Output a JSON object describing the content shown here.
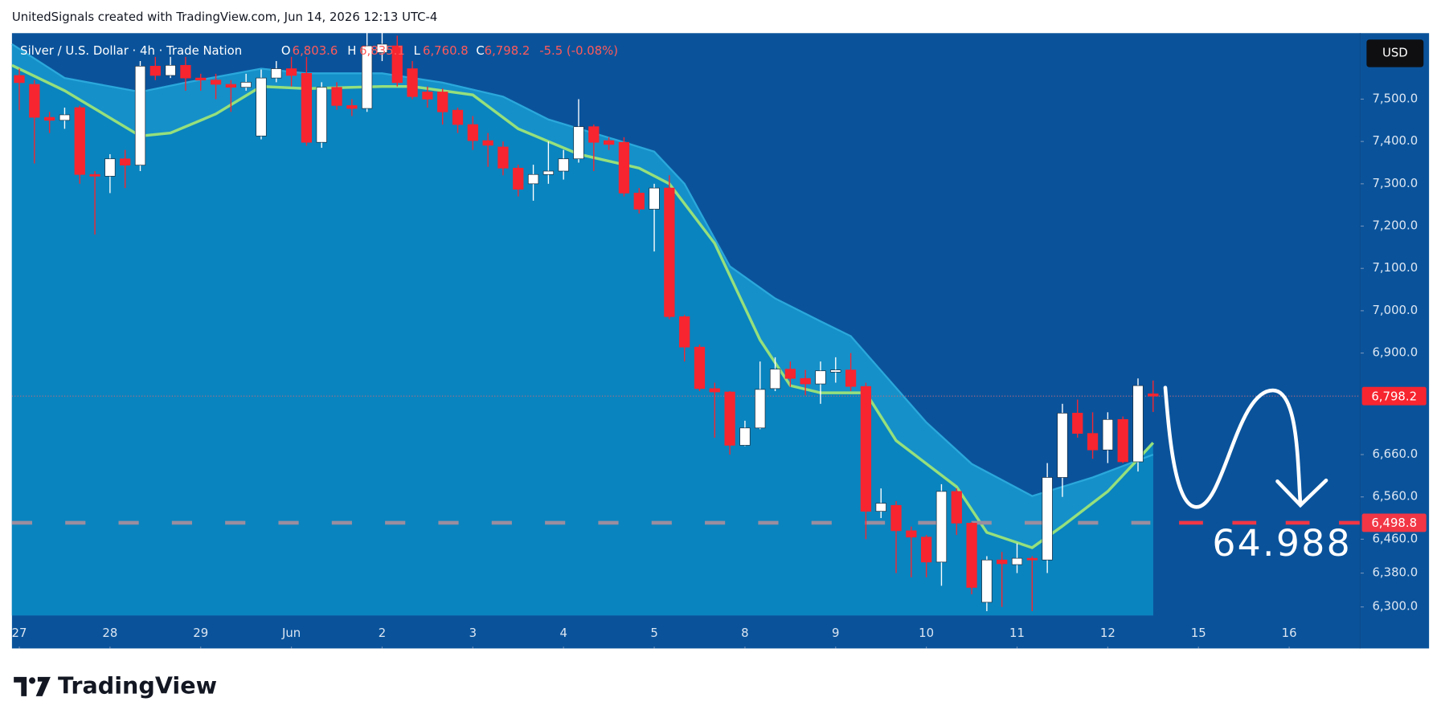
{
  "header": {
    "attribution": "UnitedSignals created with TradingView.com, Jun 14, 2026 12:13 UTC-4"
  },
  "currency_button": "USD",
  "logo": "TradingView",
  "chart_data": {
    "type": "candlestick",
    "legend": {
      "symbol": "Silver / U.S. Dollar · 4h · Trade Nation",
      "o_label": "O",
      "o": "6,803.6",
      "h_label": "H",
      "h": "6,835.1",
      "l_label": "L",
      "l": "6,760.8",
      "c_label": "C",
      "c": "6,798.2",
      "change": "-5.5 (-0.08%)"
    },
    "open": [
      7556,
      7535,
      7457,
      7450,
      7480,
      7322,
      7318,
      7359,
      7344,
      7578,
      7556,
      7580,
      7550,
      7545,
      7535,
      7528,
      7413,
      7550,
      7572,
      7561,
      7398,
      7528,
      7485,
      7478,
      7610,
      7626,
      7572,
      7517,
      7517,
      7474,
      7440,
      7402,
      7387,
      7337,
      7300,
      7322,
      7330,
      7359,
      7435,
      7402,
      7398,
      7278,
      7240,
      7290,
      6986,
      6914,
      6816,
      6808,
      6682,
      6723,
      6816,
      6862,
      6840,
      6827,
      6855,
      6860,
      6821,
      6526,
      6540,
      6480,
      6465,
      6406,
      6573,
      6498,
      6311,
      6411,
      6400,
      6415,
      6411,
      6606,
      6758,
      6710,
      6671,
      6743,
      6643,
      6803.6
    ],
    "high": [
      7572,
      7545,
      7470,
      7480,
      7485,
      7330,
      7370,
      7380,
      7590,
      7600,
      7600,
      7600,
      7560,
      7560,
      7545,
      7560,
      7570,
      7590,
      7600,
      7600,
      7540,
      7540,
      7500,
      7660,
      7660,
      7650,
      7590,
      7530,
      7525,
      7480,
      7460,
      7420,
      7400,
      7345,
      7345,
      7400,
      7380,
      7500,
      7440,
      7410,
      7410,
      7290,
      7300,
      7320,
      6990,
      6920,
      6830,
      6810,
      6740,
      6880,
      6890,
      6880,
      6860,
      6880,
      6890,
      6900,
      6830,
      6580,
      6550,
      6490,
      6470,
      6590,
      6580,
      6500,
      6420,
      6430,
      6450,
      6420,
      6640,
      6780,
      6790,
      6760,
      6760,
      6750,
      6840,
      6835.1
    ],
    "low": [
      7474,
      7348,
      7420,
      7430,
      7300,
      7180,
      7278,
      7290,
      7330,
      7545,
      7550,
      7520,
      7520,
      7500,
      7470,
      7520,
      7405,
      7540,
      7530,
      7390,
      7385,
      7475,
      7460,
      7470,
      7590,
      7530,
      7500,
      7480,
      7440,
      7420,
      7380,
      7340,
      7320,
      7270,
      7260,
      7300,
      7310,
      7350,
      7330,
      7380,
      7270,
      7230,
      7140,
      6980,
      6880,
      6810,
      6700,
      6660,
      6680,
      6720,
      6810,
      6820,
      6800,
      6780,
      6830,
      6810,
      6460,
      6510,
      6380,
      6370,
      6370,
      6350,
      6470,
      6330,
      6290,
      6300,
      6380,
      6290,
      6380,
      6560,
      6700,
      6650,
      6640,
      6640,
      6620,
      6760.8
    ],
    "close": [
      7539,
      7457,
      7450,
      7463,
      7322,
      7318,
      7359,
      7344,
      7578,
      7556,
      7580,
      7550,
      7545,
      7535,
      7528,
      7540,
      7550,
      7572,
      7556,
      7398,
      7528,
      7485,
      7478,
      7626,
      7630,
      7539,
      7506,
      7500,
      7470,
      7440,
      7402,
      7391,
      7337,
      7287,
      7322,
      7330,
      7359,
      7435,
      7398,
      7393,
      7278,
      7240,
      7290,
      6986,
      6914,
      6816,
      6808,
      6682,
      6723,
      6814,
      6862,
      6840,
      6827,
      6858,
      6860,
      6821,
      6526,
      6545,
      6480,
      6465,
      6406,
      6573,
      6498,
      6346,
      6411,
      6402,
      6415,
      6411,
      6606,
      6758,
      6710,
      6671,
      6743,
      6643,
      6823,
      6798.2
    ],
    "up_color": "#ffffff",
    "down_color": "#f7252f",
    "overlays": [
      {
        "color": "#2aa8dc",
        "fill": "#1690c8",
        "x": [
          0,
          3,
          8,
          11,
          16,
          19,
          24,
          28,
          32,
          35,
          39,
          42,
          44,
          47,
          50,
          53,
          55,
          60,
          63,
          67,
          71,
          75
        ],
        "values": [
          7630,
          7550,
          7517,
          7539,
          7572,
          7561,
          7561,
          7539,
          7506,
          7452,
          7409,
          7376,
          7300,
          7105,
          7029,
          6975,
          6940,
          6736,
          6638,
          6562,
          6606,
          6660
        ]
      },
      {
        "color": "#96e07c",
        "fill": "#0a84be",
        "x": [
          0,
          3,
          8,
          10,
          13,
          16,
          19,
          24,
          26,
          30,
          33,
          37,
          41,
          43,
          46,
          49,
          51,
          53,
          56,
          58,
          62,
          64,
          67,
          69,
          72,
          74,
          75
        ],
        "values": [
          7580,
          7520,
          7413,
          7420,
          7465,
          7530,
          7525,
          7530,
          7530,
          7510,
          7430,
          7370,
          7337,
          7300,
          7159,
          6931,
          6823,
          6806,
          6806,
          6693,
          6584,
          6476,
          6440,
          6491,
          6573,
          6649,
          6688
        ]
      }
    ],
    "ylim": [
      6280,
      7656
    ],
    "yticks": [
      {
        "value": 7500,
        "label": "7,500.0"
      },
      {
        "value": 7400,
        "label": "7,400.0"
      },
      {
        "value": 7300,
        "label": "7,300.0"
      },
      {
        "value": 7200,
        "label": "7,200.0"
      },
      {
        "value": 7100,
        "label": "7,100.0"
      },
      {
        "value": 7000,
        "label": "7,000.0"
      },
      {
        "value": 6900,
        "label": "6,900.0"
      },
      {
        "value": 6660,
        "label": "6,660.0"
      },
      {
        "value": 6560,
        "label": "6,560.0"
      },
      {
        "value": 6460,
        "label": "6,460.0"
      },
      {
        "value": 6380,
        "label": "6,380.0"
      },
      {
        "value": 6300,
        "label": "6,300.0"
      }
    ],
    "xticks": [
      {
        "value": 0,
        "label": "27"
      },
      {
        "value": 6,
        "label": "28"
      },
      {
        "value": 12,
        "label": "29"
      },
      {
        "value": 18,
        "label": "Jun"
      },
      {
        "value": 24,
        "label": "2"
      },
      {
        "value": 30,
        "label": "3"
      },
      {
        "value": 36,
        "label": "4"
      },
      {
        "value": 42,
        "label": "5"
      },
      {
        "value": 48,
        "label": "8"
      },
      {
        "value": 54,
        "label": "9"
      },
      {
        "value": 60,
        "label": "10"
      },
      {
        "value": 66,
        "label": "11"
      },
      {
        "value": 72,
        "label": "12"
      },
      {
        "value": 78,
        "label": "15"
      },
      {
        "value": 84,
        "label": "16"
      }
    ],
    "current_price": {
      "value": 6798.2,
      "label": "6,798.2",
      "color": "#f7252f"
    },
    "level": {
      "value": 6498.8,
      "label": "6,498.8",
      "color": "#f23645"
    },
    "annotation": "64.988",
    "grid": false
  }
}
